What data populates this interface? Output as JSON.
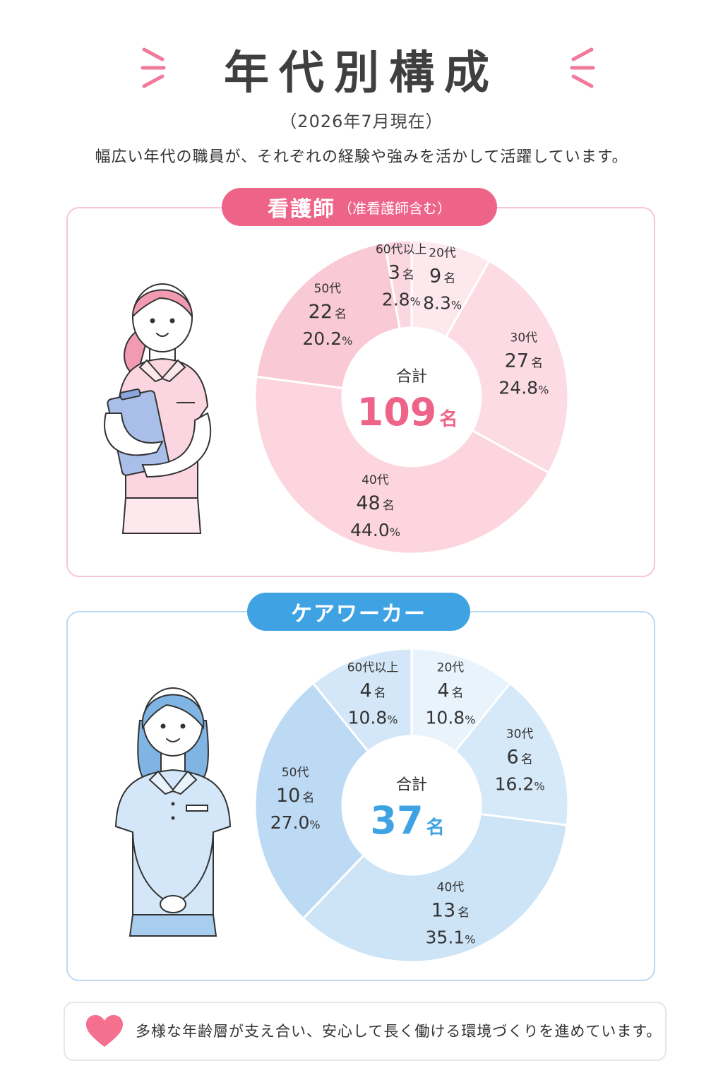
{
  "page": {
    "title": "年代別構成",
    "subtitle": "（2026年7月現在）",
    "lead": "幅広い年代の職員が、それぞれの経験や強みを活かして活躍しています。",
    "note": "多様な年齢層が支え合い、安心して長く働ける環境づくりを進めています。",
    "count_unit": "名",
    "total_label": "合計"
  },
  "sections": {
    "nurse": {
      "label": "看護師",
      "sub_label": "（准看護師含む）"
    },
    "care": {
      "label": "ケアワーカー"
    }
  },
  "colors": {
    "nurse_accent": "#ee6388",
    "care_accent": "#3fa3e3",
    "nurse_slices": [
      "#fde8ee",
      "#fcdbe4",
      "#fcd5df",
      "#f9c9d6",
      "#fbd7e1"
    ],
    "care_slices": [
      "#e8f3fc",
      "#d6e9f9",
      "#cde4f7",
      "#bcdaf3",
      "#d3e7f8"
    ]
  },
  "icons": {
    "nurse_figure": "nurse-with-clipboard-illustration",
    "care_figure": "care-worker-illustration",
    "note": "heart-icon"
  },
  "chart_data": [
    {
      "type": "pie",
      "section": "nurse",
      "total": 109,
      "categories": [
        "20代",
        "30代",
        "40代",
        "50代",
        "60代以上"
      ],
      "values": [
        9,
        27,
        48,
        22,
        3
      ],
      "percents": [
        "8.3%",
        "24.8%",
        "44.0%",
        "20.2%",
        "2.8%"
      ]
    },
    {
      "type": "pie",
      "section": "care",
      "total": 37,
      "categories": [
        "20代",
        "30代",
        "40代",
        "50代",
        "60代以上"
      ],
      "values": [
        4,
        6,
        13,
        10,
        4
      ],
      "percents": [
        "10.8%",
        "16.2%",
        "35.1%",
        "27.0%",
        "10.8%"
      ]
    }
  ]
}
